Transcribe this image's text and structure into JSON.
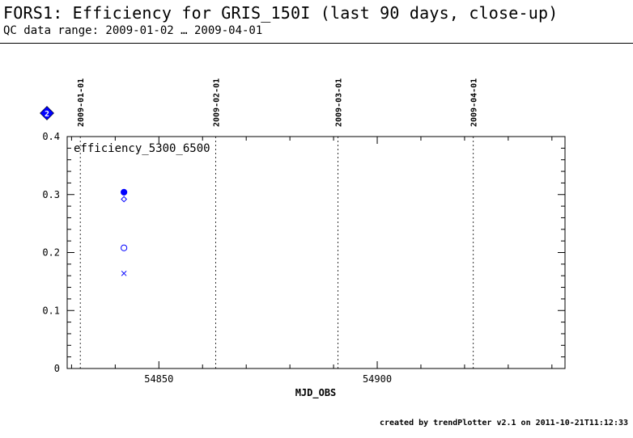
{
  "header": {
    "title": "FORS1: Efficiency for GRIS_150I (last 90 days, close-up)",
    "subtitle": "QC data range: 2009-01-02 … 2009-04-01"
  },
  "footer": {
    "credit": "created by trendPlotter v2.1 on 2011-10-21T11:12:33"
  },
  "legend_badge": {
    "label": "2",
    "color": "#0000ff"
  },
  "chart_data": {
    "type": "scatter",
    "title": "",
    "panel_label": "efficiency_5300_6500",
    "xlabel": "MJD_OBS",
    "ylabel": "",
    "xlim": [
      54829,
      54943
    ],
    "ylim": [
      0,
      0.4
    ],
    "x_ticks": [
      54850,
      54900
    ],
    "x_tick_labels": [
      "54850",
      "54900"
    ],
    "y_ticks": [
      0,
      0.1,
      0.2,
      0.3,
      0.4
    ],
    "y_tick_labels": [
      "0",
      "0.1",
      "0.2",
      "0.3",
      "0.4"
    ],
    "date_markers": [
      {
        "x": 54832,
        "label": "2009-01-01"
      },
      {
        "x": 54863,
        "label": "2009-02-01"
      },
      {
        "x": 54891,
        "label": "2009-03-01"
      },
      {
        "x": 54922,
        "label": "2009-04-01"
      }
    ],
    "color": "#0000ff",
    "series": [
      {
        "marker": "filled-circle",
        "points": [
          {
            "x": 54842,
            "y": 0.304
          }
        ]
      },
      {
        "marker": "diamond",
        "points": [
          {
            "x": 54842,
            "y": 0.292
          }
        ]
      },
      {
        "marker": "circle",
        "points": [
          {
            "x": 54842,
            "y": 0.208
          }
        ]
      },
      {
        "marker": "cross",
        "points": [
          {
            "x": 54842,
            "y": 0.164
          }
        ]
      }
    ]
  }
}
